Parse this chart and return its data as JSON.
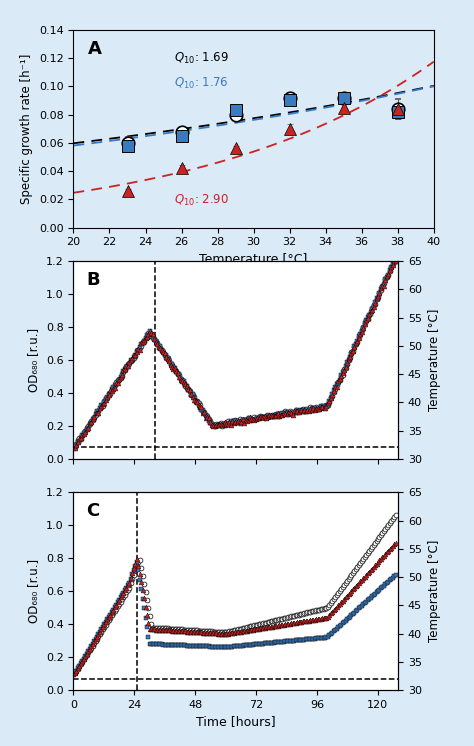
{
  "panel_A": {
    "label": "A",
    "temps": [
      23,
      26,
      29,
      32,
      35,
      38
    ],
    "circle_vals": [
      0.06,
      0.068,
      0.08,
      0.092,
      0.092,
      0.084
    ],
    "circle_err": [
      0.004,
      0.003,
      0.003,
      0.003,
      0.003,
      0.007
    ],
    "square_vals": [
      0.058,
      0.065,
      0.083,
      0.09,
      0.092,
      0.082
    ],
    "square_err": [
      0.003,
      0.003,
      0.002,
      0.002,
      0.003,
      0.005
    ],
    "triangle_vals": [
      0.026,
      0.042,
      0.056,
      0.07,
      0.085,
      0.084
    ],
    "triangle_err": [
      0.001,
      0.002,
      0.002,
      0.003,
      0.003,
      0.003
    ],
    "q10_circle_text": "Q",
    "q10_circle_sub": "10",
    "q10_circle_val": ": 1.69",
    "q10_square_text": "Q",
    "q10_square_sub": "10",
    "q10_square_val": ": 1.76",
    "q10_triangle_text": "Q",
    "q10_triangle_sub": "10",
    "q10_triangle_val": ": 2.90",
    "xlim": [
      20,
      40
    ],
    "ylim": [
      0.0,
      0.14
    ],
    "yticks": [
      0.0,
      0.02,
      0.04,
      0.06,
      0.08,
      0.1,
      0.12,
      0.14
    ],
    "xticks": [
      20,
      22,
      24,
      26,
      28,
      30,
      32,
      34,
      36,
      38,
      40
    ],
    "xlabel": "Temperature [°C]",
    "ylabel": "Specific growth rate [h⁻¹]",
    "bg_color": "#daeaf7"
  },
  "panel_B": {
    "label": "B",
    "xlim": [
      0,
      128
    ],
    "ylim": [
      0,
      1.2
    ],
    "ylim2": [
      30,
      65
    ],
    "xticks": [
      0,
      24,
      48,
      72,
      96,
      120
    ],
    "yticks": [
      0,
      0.2,
      0.4,
      0.6,
      0.8,
      1.0,
      1.2
    ],
    "yticks2": [
      30,
      35,
      40,
      45,
      50,
      55,
      60,
      65
    ],
    "ylabel": "OD₆₈₀ [r.u.]",
    "ylabel2": "Temperature [°C]",
    "dashed_hline": 0.07,
    "dashed_vline": 32,
    "bg_color": "#ffffff"
  },
  "panel_C": {
    "label": "C",
    "xlim": [
      0,
      128
    ],
    "ylim": [
      0,
      1.2
    ],
    "ylim2": [
      30,
      65
    ],
    "xticks": [
      0,
      24,
      48,
      72,
      96,
      120
    ],
    "yticks": [
      0,
      0.2,
      0.4,
      0.6,
      0.8,
      1.0,
      1.2
    ],
    "yticks2": [
      30,
      35,
      40,
      45,
      50,
      55,
      60,
      65
    ],
    "xlabel": "Time [hours]",
    "ylabel": "OD₆₈₀ [r.u.]",
    "ylabel2": "Temperature [°C]",
    "dashed_hline": 0.07,
    "dashed_vline": 25,
    "bg_color": "#ffffff"
  },
  "colors": {
    "circle_face": "#ffffff",
    "circle_edge": "#000000",
    "square_face": "#3a7abf",
    "square_edge": "#000000",
    "triangle_face": "#cc2222",
    "triangle_edge": "#000000",
    "q10_circle": "#000000",
    "q10_square": "#3a7abf",
    "q10_triangle": "#cc2222"
  },
  "fig_bg": "#daeaf7"
}
